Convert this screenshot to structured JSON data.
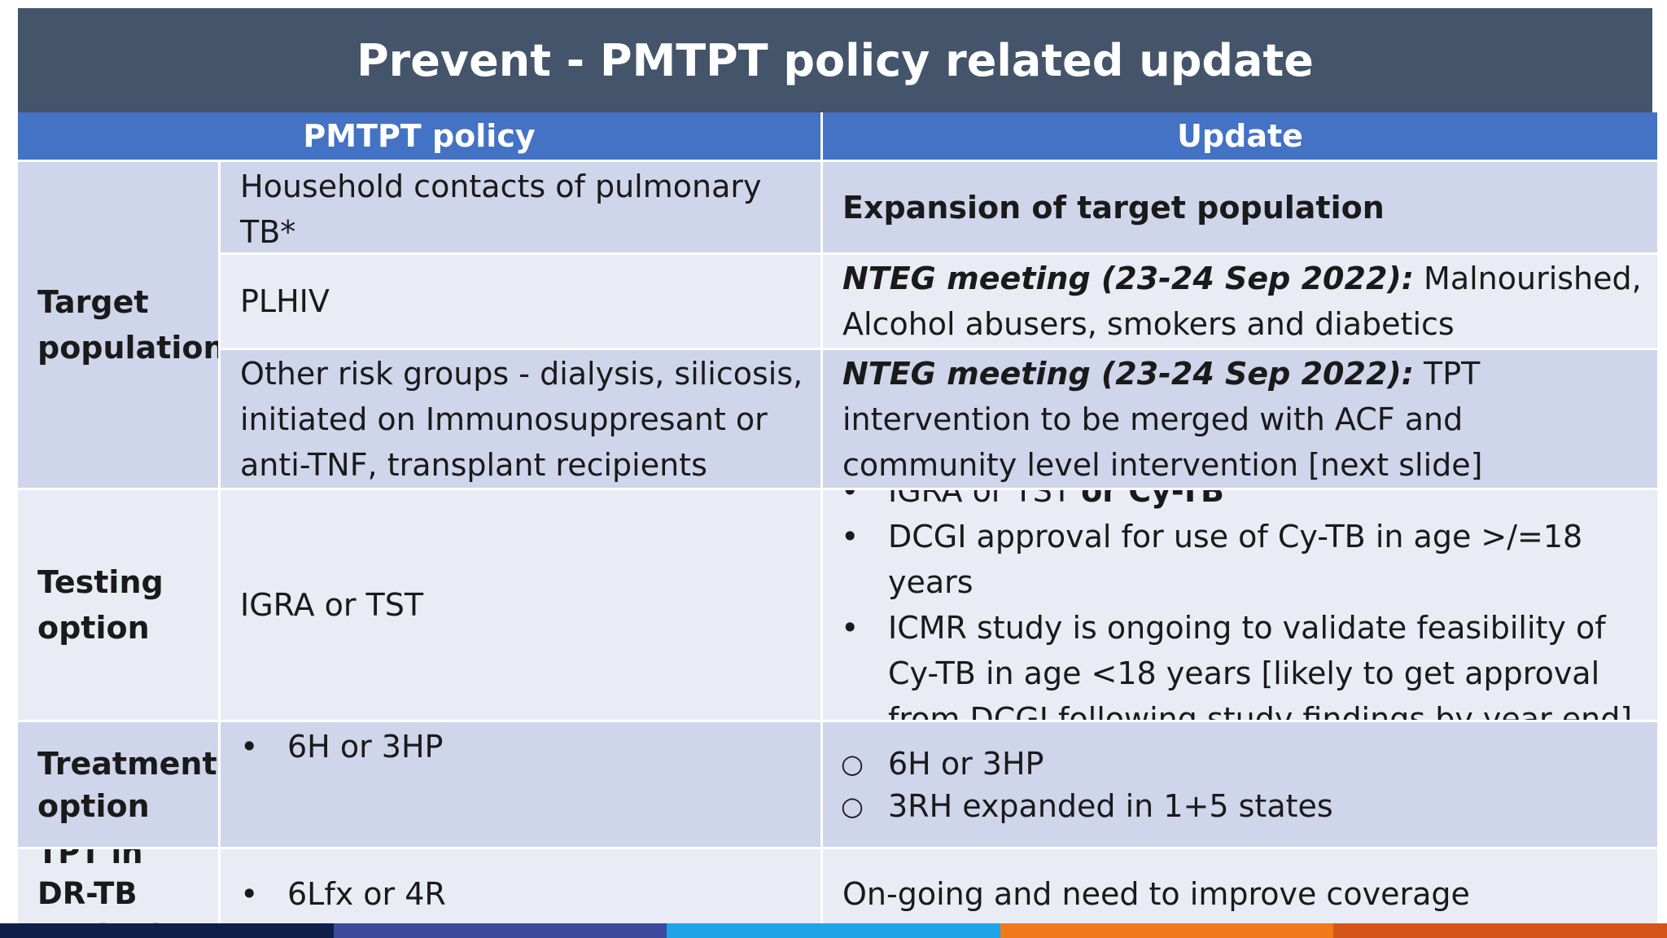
{
  "slide": {
    "title": "Prevent - PMTPT policy related update"
  },
  "table": {
    "headers": {
      "policy": "PMTPT policy",
      "update": "Update"
    },
    "target_population": {
      "label": "Target population",
      "rows": [
        {
          "policy": "Household contacts of pulmonary TB*",
          "update": "Expansion of target population"
        },
        {
          "policy": "PLHIV",
          "update_bold": "NTEG meeting (23-24 Sep 2022):",
          "update_rest": " Malnourished, Alcohol abusers, smokers and diabetics"
        },
        {
          "policy": "Other risk groups - dialysis, silicosis, initiated on Immunosuppresant or anti-TNF, transplant recipients",
          "update_bold": "NTEG meeting (23-24 Sep 2022):",
          "update_rest": " TPT intervention to be merged with ACF and community level intervention [next slide]"
        }
      ]
    },
    "testing_option": {
      "label": "Testing option",
      "policy": "IGRA or TST",
      "updates": [
        {
          "text": "IGRA or TST ",
          "bold": "or Cy-TB"
        },
        {
          "text": "DCGI approval for use of Cy-TB in age >/=18 years"
        },
        {
          "text": "ICMR study is ongoing to validate feasibility of Cy-TB in age <18 years [likely to get approval from DCGI following study findings by year end]"
        }
      ]
    },
    "treatment_option": {
      "label": "Treatment option",
      "policy": [
        "6H or 3HP"
      ],
      "updates": [
        "6H or 3HP",
        "3RH expanded in 1+5 states"
      ]
    },
    "tpt_dr_tb": {
      "label": "TPT in DR-TB contact",
      "policy": [
        "6Lfx or 4R"
      ],
      "update": "On-going and need to improve coverage"
    }
  },
  "bullets": {
    "filled": "•",
    "hollow": "○"
  },
  "colors": {
    "title_bg": "#44546a",
    "header_bg": "#4472c4",
    "row_dark": "#cfd5ea",
    "row_light": "#e9ebf5",
    "footer": [
      "#0f1f4a",
      "#3b4a9c",
      "#1fa3e8",
      "#f07a1a",
      "#d4541a"
    ]
  }
}
